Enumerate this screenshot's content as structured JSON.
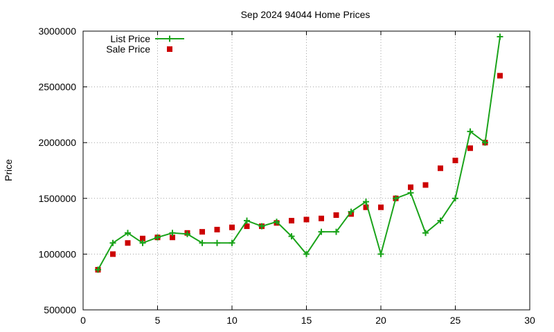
{
  "chart_data": {
    "type": "line",
    "title": "Sep 2024 94044 Home Prices",
    "xlabel": "",
    "ylabel": "Price",
    "xlim": [
      0,
      30
    ],
    "ylim": [
      500000,
      3000000
    ],
    "xticks": [
      "0",
      "5",
      "10",
      "15",
      "20",
      "25",
      "30"
    ],
    "yticks": [
      "500000",
      "1000000",
      "1500000",
      "2000000",
      "2500000",
      "3000000"
    ],
    "grid": true,
    "legend_position": "top-left",
    "series": [
      {
        "name": "List Price",
        "kind": "line-with-plus-markers",
        "color": "#1aa31a",
        "x": [
          1,
          2,
          3,
          4,
          5,
          6,
          7,
          8,
          9,
          10,
          11,
          12,
          13,
          14,
          15,
          16,
          17,
          18,
          19,
          20,
          21,
          22,
          23,
          24,
          25,
          26,
          27,
          28
        ],
        "y": [
          860000,
          1100000,
          1190000,
          1100000,
          1150000,
          1190000,
          1180000,
          1100000,
          1100000,
          1100000,
          1300000,
          1250000,
          1290000,
          1160000,
          1000000,
          1200000,
          1200000,
          1380000,
          1470000,
          1000000,
          1500000,
          1550000,
          1190000,
          1300000,
          1500000,
          2100000,
          2000000,
          2950000
        ]
      },
      {
        "name": "Sale Price",
        "kind": "square-markers",
        "color": "#cc0000",
        "x": [
          1,
          2,
          3,
          4,
          5,
          6,
          7,
          8,
          9,
          10,
          11,
          12,
          13,
          14,
          15,
          16,
          17,
          18,
          19,
          20,
          21,
          22,
          23,
          24,
          25,
          26,
          27,
          28
        ],
        "y": [
          860000,
          1000000,
          1100000,
          1140000,
          1150000,
          1150000,
          1190000,
          1200000,
          1220000,
          1240000,
          1250000,
          1250000,
          1280000,
          1300000,
          1310000,
          1320000,
          1350000,
          1360000,
          1420000,
          1420000,
          1500000,
          1600000,
          1620000,
          1770000,
          1840000,
          1950000,
          2000000,
          2600000
        ]
      }
    ]
  }
}
